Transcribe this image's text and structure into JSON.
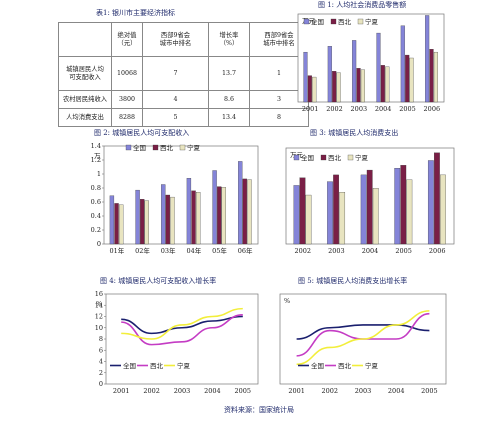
{
  "table1": {
    "caption": "表1: 银川市主要经济指标",
    "headers": [
      "",
      "绝对值\n（元）",
      "西部9省会\n城市中排名",
      "增长率\n（%）",
      "西部9省会\n城市中排名"
    ],
    "rows": [
      {
        "label": "城镇居民人均\n可支配收入",
        "value": "10068",
        "rank1": "7",
        "growth": "13.7",
        "rank2": "1"
      },
      {
        "label": "农村居民纯收入",
        "value": "3800",
        "rank1": "4",
        "growth": "8.6",
        "rank2": "3"
      },
      {
        "label": "人均消费支出",
        "value": "8288",
        "rank1": "5",
        "growth": "13.4",
        "rank2": "8"
      }
    ]
  },
  "chart_data": [
    {
      "id": "fig1",
      "type": "bar",
      "title": "图 1: 人均社会消费品零售额",
      "unit": "万元",
      "categories": [
        "2001",
        "2002",
        "2003",
        "2004",
        "2005",
        "2006"
      ],
      "ylim": [
        0,
        0.6
      ],
      "series": [
        {
          "name": "全国",
          "color": "#8484d8",
          "values": [
            0.34,
            0.38,
            0.42,
            0.47,
            0.52,
            0.59
          ]
        },
        {
          "name": "西北",
          "color": "#7a1f46",
          "values": [
            0.18,
            0.21,
            0.23,
            0.25,
            0.32,
            0.36
          ]
        },
        {
          "name": "宁夏",
          "color": "#e8e4c0",
          "values": [
            0.17,
            0.2,
            0.22,
            0.24,
            0.3,
            0.34
          ]
        }
      ]
    },
    {
      "id": "fig2",
      "type": "bar",
      "title": "图 2: 城镇居民人均可支配收入",
      "unit": "万",
      "categories": [
        "01年",
        "02年",
        "03年",
        "04年",
        "05年",
        "06年"
      ],
      "ylim": [
        0,
        1.4
      ],
      "yticks": [
        0,
        0.2,
        0.4,
        0.6,
        0.8,
        1,
        1.2,
        1.4
      ],
      "series": [
        {
          "name": "全国",
          "color": "#8484d8",
          "values": [
            0.69,
            0.77,
            0.85,
            0.94,
            1.05,
            1.18
          ]
        },
        {
          "name": "西北",
          "color": "#7a1f46",
          "values": [
            0.58,
            0.64,
            0.7,
            0.76,
            0.82,
            0.93
          ]
        },
        {
          "name": "宁夏",
          "color": "#e8e4c0",
          "values": [
            0.56,
            0.62,
            0.67,
            0.74,
            0.81,
            0.92
          ]
        }
      ]
    },
    {
      "id": "fig3",
      "type": "bar",
      "title": "图 3: 城镇居民人均消费支出",
      "unit": "万元",
      "categories": [
        "2002",
        "2003",
        "2004",
        "2005",
        "2006"
      ],
      "ylim": [
        0,
        1.0
      ],
      "series": [
        {
          "name": "全国",
          "color": "#8484d8",
          "values": [
            0.61,
            0.65,
            0.72,
            0.79,
            0.87
          ]
        },
        {
          "name": "西北",
          "color": "#7a1f46",
          "values": [
            0.69,
            0.72,
            0.77,
            0.82,
            0.95
          ]
        },
        {
          "name": "宁夏",
          "color": "#e8e4c0",
          "values": [
            0.51,
            0.54,
            0.58,
            0.67,
            0.72
          ]
        }
      ]
    },
    {
      "id": "fig4",
      "type": "line",
      "title": "图 4: 城镇居民人均可支配收入增长率",
      "unit": "%",
      "x": [
        "2001",
        "2002",
        "2003",
        "2004",
        "2005"
      ],
      "ylim": [
        0,
        16
      ],
      "yticks": [
        0,
        2,
        4,
        6,
        8,
        10,
        12,
        14,
        16
      ],
      "series": [
        {
          "name": "全国",
          "color": "#1a1f6e",
          "values": [
            11.5,
            9.0,
            10.0,
            11.2,
            12.0
          ]
        },
        {
          "name": "西北",
          "color": "#c43cc4",
          "values": [
            11.0,
            7.0,
            7.5,
            10.0,
            12.3
          ]
        },
        {
          "name": "宁夏",
          "color": "#f2ee3a",
          "values": [
            9.0,
            8.0,
            10.5,
            12.0,
            13.4
          ]
        }
      ]
    },
    {
      "id": "fig5",
      "type": "line",
      "title": "图 5: 城镇居民人均消费支出增长率",
      "unit": "%",
      "x": [
        "2001",
        "2002",
        "2003",
        "2004",
        "2005"
      ],
      "ylim": [
        0,
        16
      ],
      "yticks": [
        0,
        2,
        4,
        6,
        8,
        10,
        12,
        14,
        16
      ],
      "series": [
        {
          "name": "全国",
          "color": "#1a1f6e",
          "values": [
            8.0,
            10.0,
            10.5,
            10.5,
            9.5
          ]
        },
        {
          "name": "西北",
          "color": "#c43cc4",
          "values": [
            5.0,
            9.5,
            8.0,
            8.0,
            12.5
          ]
        },
        {
          "name": "宁夏",
          "color": "#f2ee3a",
          "values": [
            3.5,
            6.5,
            8.0,
            10.5,
            13.0
          ]
        }
      ]
    }
  ],
  "source": "资料来源：国家统计局"
}
